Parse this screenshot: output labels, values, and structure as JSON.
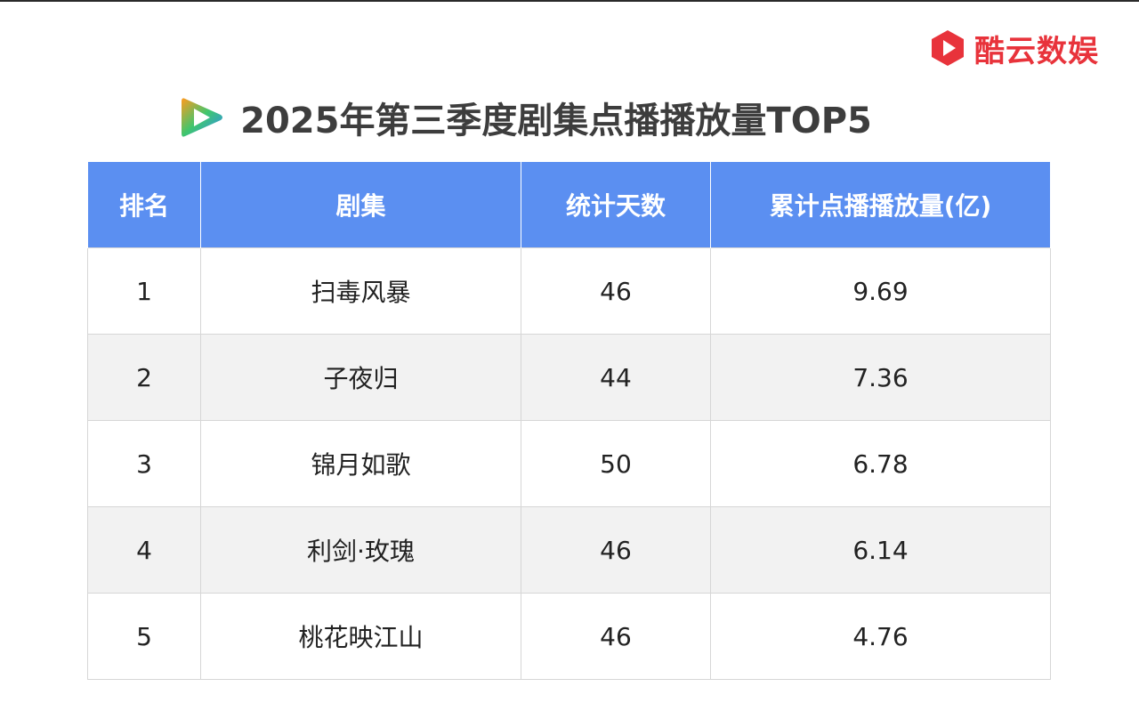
{
  "brand": {
    "name": "酷云数娱",
    "color": "#e8333b",
    "logo_icon": "red-play-hexagon-logo"
  },
  "title": {
    "text": "2025年第三季度剧集点播播放量TOP5",
    "logo_icon": "tencent-video-logo"
  },
  "colors": {
    "header_bg": "#5b8ff1",
    "stripe_bg": "#f2f2f2"
  },
  "chart_data": {
    "type": "table",
    "columns": [
      "排名",
      "剧集",
      "统计天数",
      "累计点播播放量(亿)"
    ],
    "rows": [
      [
        "1",
        "扫毒风暴",
        "46",
        "9.69"
      ],
      [
        "2",
        "子夜归",
        "44",
        "7.36"
      ],
      [
        "3",
        "锦月如歌",
        "50",
        "6.78"
      ],
      [
        "4",
        "利剑·玫瑰",
        "46",
        "6.14"
      ],
      [
        "5",
        "桃花映江山",
        "46",
        "4.76"
      ]
    ]
  }
}
